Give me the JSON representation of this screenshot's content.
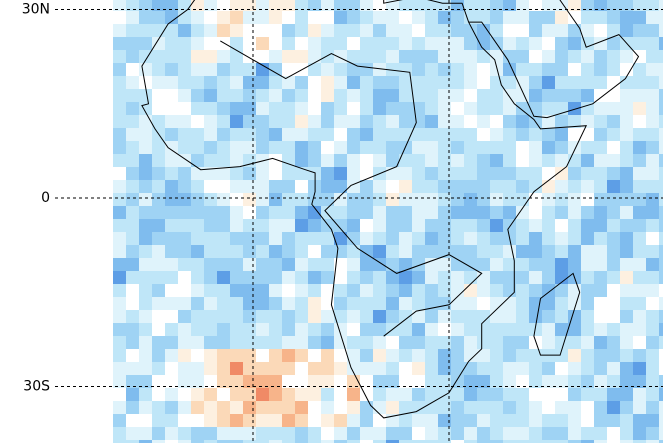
{
  "map": {
    "latitude_lines": [
      {
        "value": 30,
        "label": "30N"
      },
      {
        "value": 0,
        "label": "0"
      },
      {
        "value": -30,
        "label": "30S"
      }
    ],
    "longitude_lines": [
      0,
      30
    ]
  }
}
